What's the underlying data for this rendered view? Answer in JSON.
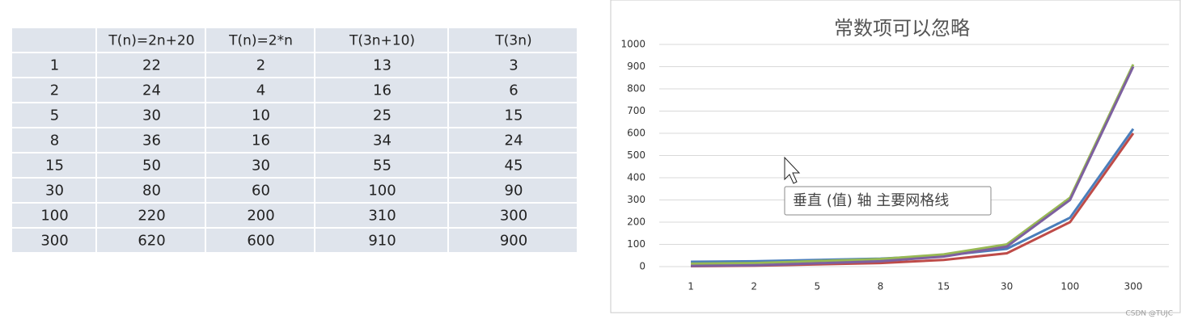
{
  "table": {
    "columns": [
      "T(n)=2n+20",
      "T(n)=2*n",
      "T(3n+10)",
      "T(3n)"
    ],
    "rows": [
      [
        1,
        22,
        2,
        13,
        3
      ],
      [
        2,
        24,
        4,
        16,
        6
      ],
      [
        5,
        30,
        10,
        25,
        15
      ],
      [
        8,
        36,
        16,
        34,
        24
      ],
      [
        15,
        50,
        30,
        55,
        45
      ],
      [
        30,
        80,
        60,
        100,
        90
      ],
      [
        100,
        220,
        200,
        310,
        300
      ],
      [
        300,
        620,
        600,
        910,
        900
      ]
    ]
  },
  "chart_data": {
    "type": "line",
    "title": "常数项可以忽略",
    "categories": [
      "1",
      "2",
      "5",
      "8",
      "15",
      "30",
      "100",
      "300"
    ],
    "series": [
      {
        "color": "#4a7ebb",
        "values": [
          22,
          24,
          30,
          36,
          50,
          80,
          220,
          620
        ]
      },
      {
        "color": "#be4b48",
        "values": [
          2,
          4,
          10,
          16,
          30,
          60,
          200,
          600
        ]
      },
      {
        "color": "#98b954",
        "values": [
          13,
          16,
          25,
          34,
          55,
          100,
          310,
          910
        ]
      },
      {
        "color": "#7d60a0",
        "values": [
          3,
          6,
          15,
          24,
          45,
          90,
          300,
          900
        ]
      }
    ],
    "ylim": [
      0,
      1000
    ],
    "yticks": [
      0,
      100,
      200,
      300,
      400,
      500,
      600,
      700,
      800,
      900,
      1000
    ],
    "grid": true,
    "tooltip": "垂直 (值) 轴 主要网格线"
  },
  "watermark": "CSDN @TUJC"
}
